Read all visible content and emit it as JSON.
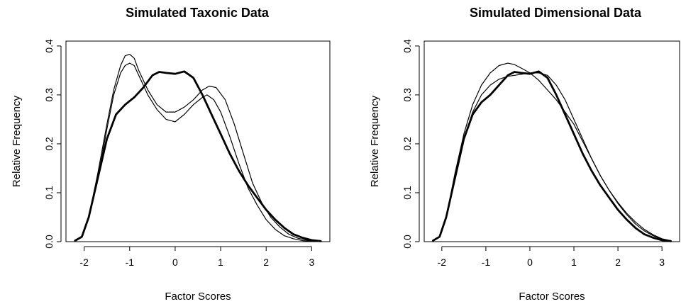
{
  "chart_data": [
    {
      "type": "line",
      "title": "Simulated Taxonic Data",
      "xlabel": "Factor Scores",
      "ylabel": "Relative Frequency",
      "xlim": [
        -2.4,
        3.4
      ],
      "ylim": [
        0,
        0.41
      ],
      "xticks": [
        -2,
        -1,
        0,
        1,
        2,
        3
      ],
      "yticks": [
        0.0,
        0.1,
        0.2,
        0.3,
        0.4
      ],
      "xtick_labels": [
        "-2",
        "-1",
        "0",
        "1",
        "2",
        "3"
      ],
      "ytick_labels": [
        "0.0",
        "0.1",
        "0.2",
        "0.3",
        "0.4"
      ],
      "grid": false,
      "color": "#000000",
      "series": [
        {
          "weight": "thick",
          "x": [
            -2.2,
            -2.05,
            -1.9,
            -1.7,
            -1.5,
            -1.3,
            -1.1,
            -0.9,
            -0.7,
            -0.5,
            -0.35,
            -0.2,
            0.0,
            0.2,
            0.4,
            0.6,
            0.8,
            1.0,
            1.2,
            1.4,
            1.6,
            1.8,
            2.0,
            2.2,
            2.4,
            2.6,
            2.8,
            3.0,
            3.2
          ],
          "y": [
            0.002,
            0.01,
            0.05,
            0.13,
            0.21,
            0.26,
            0.28,
            0.295,
            0.315,
            0.34,
            0.347,
            0.345,
            0.343,
            0.348,
            0.335,
            0.3,
            0.26,
            0.22,
            0.18,
            0.145,
            0.115,
            0.09,
            0.065,
            0.045,
            0.028,
            0.015,
            0.008,
            0.003,
            0.001
          ]
        },
        {
          "weight": "thin",
          "x": [
            -2.2,
            -2.05,
            -1.9,
            -1.7,
            -1.5,
            -1.35,
            -1.2,
            -1.1,
            -1.0,
            -0.9,
            -0.8,
            -0.6,
            -0.4,
            -0.2,
            0.0,
            0.2,
            0.4,
            0.6,
            0.75,
            0.9,
            1.1,
            1.3,
            1.5,
            1.7,
            1.9,
            2.1,
            2.3,
            2.5,
            2.7,
            2.9,
            3.1,
            3.2
          ],
          "y": [
            0.002,
            0.01,
            0.05,
            0.14,
            0.24,
            0.31,
            0.36,
            0.38,
            0.383,
            0.375,
            0.35,
            0.31,
            0.28,
            0.265,
            0.265,
            0.275,
            0.29,
            0.31,
            0.318,
            0.315,
            0.29,
            0.24,
            0.18,
            0.12,
            0.08,
            0.05,
            0.03,
            0.015,
            0.007,
            0.003,
            0.001,
            0.001
          ]
        },
        {
          "weight": "thin",
          "x": [
            -2.2,
            -2.05,
            -1.9,
            -1.7,
            -1.5,
            -1.35,
            -1.2,
            -1.1,
            -1.0,
            -0.9,
            -0.8,
            -0.6,
            -0.4,
            -0.2,
            0.0,
            0.2,
            0.4,
            0.6,
            0.7,
            0.85,
            1.0,
            1.2,
            1.4,
            1.6,
            1.8,
            2.0,
            2.2,
            2.4,
            2.6,
            2.8,
            3.0,
            3.2
          ],
          "y": [
            0.002,
            0.01,
            0.05,
            0.13,
            0.23,
            0.3,
            0.345,
            0.36,
            0.365,
            0.36,
            0.34,
            0.3,
            0.27,
            0.25,
            0.245,
            0.26,
            0.28,
            0.295,
            0.3,
            0.29,
            0.265,
            0.215,
            0.16,
            0.11,
            0.075,
            0.045,
            0.025,
            0.012,
            0.006,
            0.002,
            0.001,
            0.001
          ]
        }
      ]
    },
    {
      "type": "line",
      "title": "Simulated Dimensional Data",
      "xlabel": "Factor Scores",
      "ylabel": "Relative Frequency",
      "xlim": [
        -2.4,
        3.4
      ],
      "ylim": [
        0,
        0.41
      ],
      "xticks": [
        -2,
        -1,
        0,
        1,
        2,
        3
      ],
      "yticks": [
        0.0,
        0.1,
        0.2,
        0.3,
        0.4
      ],
      "xtick_labels": [
        "-2",
        "-1",
        "0",
        "1",
        "2",
        "3"
      ],
      "ytick_labels": [
        "0.0",
        "0.1",
        "0.2",
        "0.3",
        "0.4"
      ],
      "grid": false,
      "color": "#000000",
      "series": [
        {
          "weight": "thick",
          "x": [
            -2.2,
            -2.05,
            -1.9,
            -1.7,
            -1.5,
            -1.3,
            -1.1,
            -0.9,
            -0.7,
            -0.5,
            -0.35,
            -0.2,
            0.0,
            0.2,
            0.4,
            0.6,
            0.8,
            1.0,
            1.2,
            1.4,
            1.6,
            1.8,
            2.0,
            2.2,
            2.4,
            2.6,
            2.8,
            3.0,
            3.2
          ],
          "y": [
            0.002,
            0.01,
            0.05,
            0.13,
            0.21,
            0.26,
            0.285,
            0.3,
            0.32,
            0.34,
            0.347,
            0.345,
            0.343,
            0.348,
            0.335,
            0.3,
            0.26,
            0.22,
            0.18,
            0.145,
            0.115,
            0.09,
            0.065,
            0.045,
            0.028,
            0.015,
            0.008,
            0.003,
            0.001
          ]
        },
        {
          "weight": "thin",
          "x": [
            -2.2,
            -2.05,
            -1.9,
            -1.7,
            -1.5,
            -1.3,
            -1.1,
            -0.9,
            -0.7,
            -0.5,
            -0.35,
            -0.2,
            0.0,
            0.2,
            0.4,
            0.6,
            0.8,
            1.0,
            1.2,
            1.4,
            1.6,
            1.8,
            2.0,
            2.2,
            2.4,
            2.6,
            2.8,
            3.0,
            3.2
          ],
          "y": [
            0.002,
            0.01,
            0.05,
            0.14,
            0.22,
            0.28,
            0.32,
            0.345,
            0.36,
            0.365,
            0.362,
            0.355,
            0.345,
            0.33,
            0.31,
            0.29,
            0.265,
            0.24,
            0.205,
            0.17,
            0.135,
            0.105,
            0.078,
            0.055,
            0.036,
            0.022,
            0.012,
            0.005,
            0.002
          ]
        },
        {
          "weight": "thin",
          "x": [
            -2.2,
            -2.05,
            -1.9,
            -1.7,
            -1.5,
            -1.3,
            -1.1,
            -0.9,
            -0.7,
            -0.5,
            -0.35,
            -0.2,
            0.0,
            0.2,
            0.4,
            0.6,
            0.8,
            1.0,
            1.2,
            1.4,
            1.6,
            1.8,
            2.0,
            2.2,
            2.4,
            2.6,
            2.8,
            3.0,
            3.2
          ],
          "y": [
            0.002,
            0.01,
            0.05,
            0.13,
            0.21,
            0.265,
            0.3,
            0.32,
            0.332,
            0.338,
            0.34,
            0.342,
            0.345,
            0.345,
            0.34,
            0.32,
            0.29,
            0.25,
            0.21,
            0.17,
            0.135,
            0.105,
            0.08,
            0.058,
            0.04,
            0.025,
            0.014,
            0.006,
            0.002
          ]
        }
      ]
    }
  ]
}
